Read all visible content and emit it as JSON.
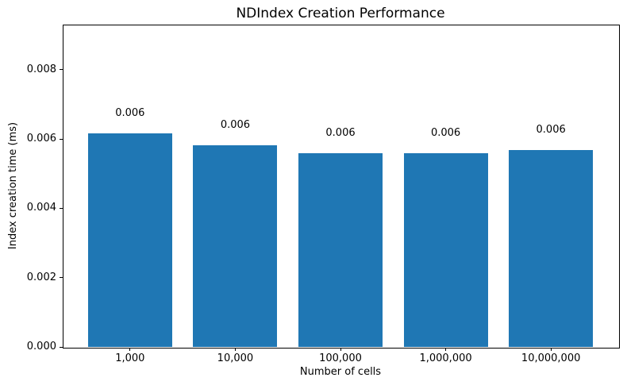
{
  "chart_data": {
    "type": "bar",
    "title": "NDIndex Creation Performance",
    "xlabel": "Number of cells",
    "ylabel": "Index creation time (ms)",
    "categories": [
      "1,000",
      "10,000",
      "100,000",
      "1,000,000",
      "10,000,000"
    ],
    "values": [
      0.00617,
      0.00581,
      0.00558,
      0.0056,
      0.00567
    ],
    "bar_labels": [
      "0.006",
      "0.006",
      "0.006",
      "0.006",
      "0.006"
    ],
    "ytick_values": [
      0.0,
      0.002,
      0.004,
      0.006,
      0.008
    ],
    "ytick_labels": [
      "0.000",
      "0.002",
      "0.004",
      "0.006",
      "0.008"
    ],
    "ylim": [
      0,
      0.0093
    ],
    "grid": false,
    "legend_position": "none",
    "bar_color": "#1f77b4"
  },
  "colors": {
    "bar": "#1f77b4",
    "axes": "#000000",
    "text": "#000000",
    "background": "#ffffff"
  }
}
